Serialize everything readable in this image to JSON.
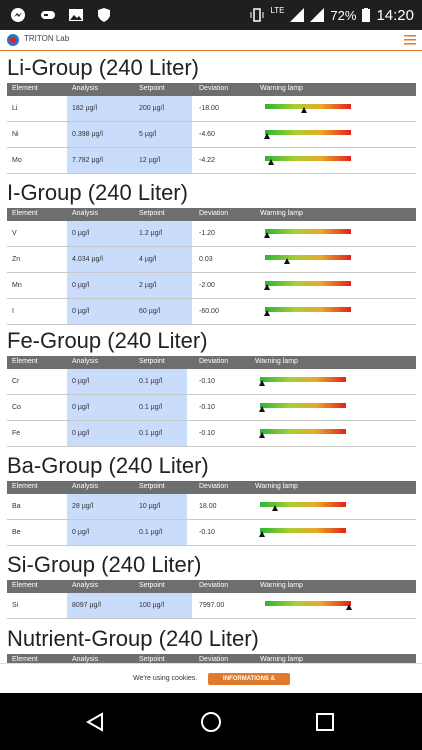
{
  "status_bar": {
    "battery_percent": "72%",
    "time": "14:20",
    "network": "LTE"
  },
  "app": {
    "brand": "TRITON Lab"
  },
  "groups": [
    {
      "title": "Li-Group (240 Liter)",
      "headers": [
        "Element",
        "Analysis",
        "Setpoint",
        "Deviation",
        "Warning lamp"
      ],
      "rows": [
        {
          "element": "Li",
          "analysis": "182 µg/l",
          "setpoint": "200 µg/l",
          "deviation": "-18.00",
          "lamp": 0.45
        },
        {
          "element": "Ni",
          "analysis": "0.398 µg/l",
          "setpoint": "5 µg/l",
          "deviation": "-4.60",
          "lamp": 0.02
        },
        {
          "element": "Mo",
          "analysis": "7.782 µg/l",
          "setpoint": "12 µg/l",
          "deviation": "-4.22",
          "lamp": 0.07
        }
      ]
    },
    {
      "title": "I-Group (240 Liter)",
      "headers": [
        "Element",
        "Analysis",
        "Setpoint",
        "Deviation",
        "Warning lamp"
      ],
      "rows": [
        {
          "element": "V",
          "analysis": "0 µg/l",
          "setpoint": "1.2 µg/l",
          "deviation": "-1.20",
          "lamp": 0.02
        },
        {
          "element": "Zn",
          "analysis": "4.034 µg/l",
          "setpoint": "4 µg/l",
          "deviation": "0.03",
          "lamp": 0.26
        },
        {
          "element": "Mn",
          "analysis": "0 µg/l",
          "setpoint": "2 µg/l",
          "deviation": "-2.00",
          "lamp": 0.02
        },
        {
          "element": "I",
          "analysis": "0 µg/l",
          "setpoint": "60 µg/l",
          "deviation": "-60.00",
          "lamp": 0.02
        }
      ]
    },
    {
      "title": "Fe-Group (240 Liter)",
      "headers": [
        "Element",
        "Analysis",
        "Setpoint",
        "Deviation",
        "Warning lamp"
      ],
      "rows": [
        {
          "element": "Cr",
          "analysis": "0 µg/l",
          "setpoint": "0.1 µg/l",
          "deviation": "-0.10",
          "lamp": 0.02
        },
        {
          "element": "Co",
          "analysis": "0 µg/l",
          "setpoint": "0.1 µg/l",
          "deviation": "-0.10",
          "lamp": 0.02
        },
        {
          "element": "Fe",
          "analysis": "0 µg/l",
          "setpoint": "0.1 µg/l",
          "deviation": "-0.10",
          "lamp": 0.02
        }
      ]
    },
    {
      "title": "Ba-Group (240 Liter)",
      "headers": [
        "Element",
        "Analysis",
        "Setpoint",
        "Deviation",
        "Warning lamp"
      ],
      "rows": [
        {
          "element": "Ba",
          "analysis": "28 µg/l",
          "setpoint": "10 µg/l",
          "deviation": "18.00",
          "lamp": 0.18
        },
        {
          "element": "Be",
          "analysis": "0 µg/l",
          "setpoint": "0.1 µg/l",
          "deviation": "-0.10",
          "lamp": 0.02
        }
      ]
    },
    {
      "title": "Si-Group (240 Liter)",
      "headers": [
        "Element",
        "Analysis",
        "Setpoint",
        "Deviation",
        "Warning lamp"
      ],
      "rows": [
        {
          "element": "Si",
          "analysis": "8097 µg/l",
          "setpoint": "100 µg/l",
          "deviation": "7997.00",
          "lamp": 0.98
        }
      ]
    },
    {
      "title": "Nutrient-Group (240 Liter)",
      "headers": [
        "Element",
        "Analysis",
        "Setpoint",
        "Deviation",
        "Warning lamp"
      ],
      "rows": []
    }
  ],
  "cookie": {
    "text": "We're using cookies.",
    "button": "INFORMATIONS & SETTINGS"
  },
  "colors": {
    "accent": "#e07a2c",
    "highlight": "#c9dcfb",
    "header": "#6e6e6e"
  }
}
